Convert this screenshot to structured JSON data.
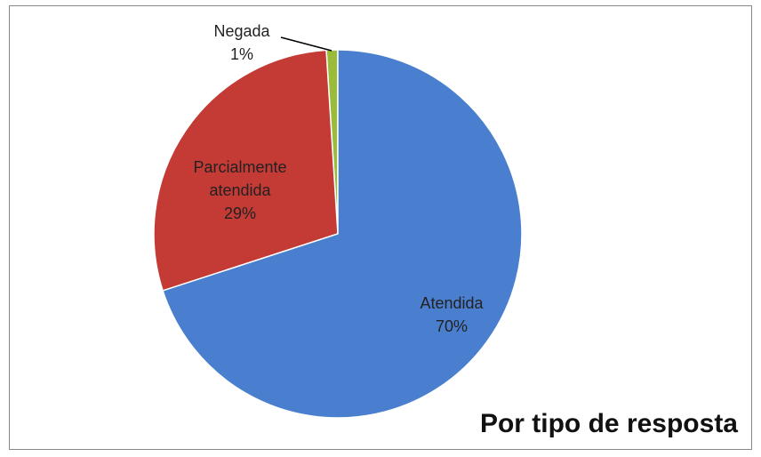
{
  "chart_data": {
    "type": "pie",
    "title": "Por tipo de resposta",
    "categories": [
      "Atendida",
      "Parcialmente atendida",
      "Negada"
    ],
    "values": [
      70,
      29,
      1
    ],
    "value_labels": [
      "70%",
      "29%",
      "1%"
    ],
    "colors": [
      "#4a7fcf",
      "#c43a35",
      "#9bbb3a"
    ]
  }
}
